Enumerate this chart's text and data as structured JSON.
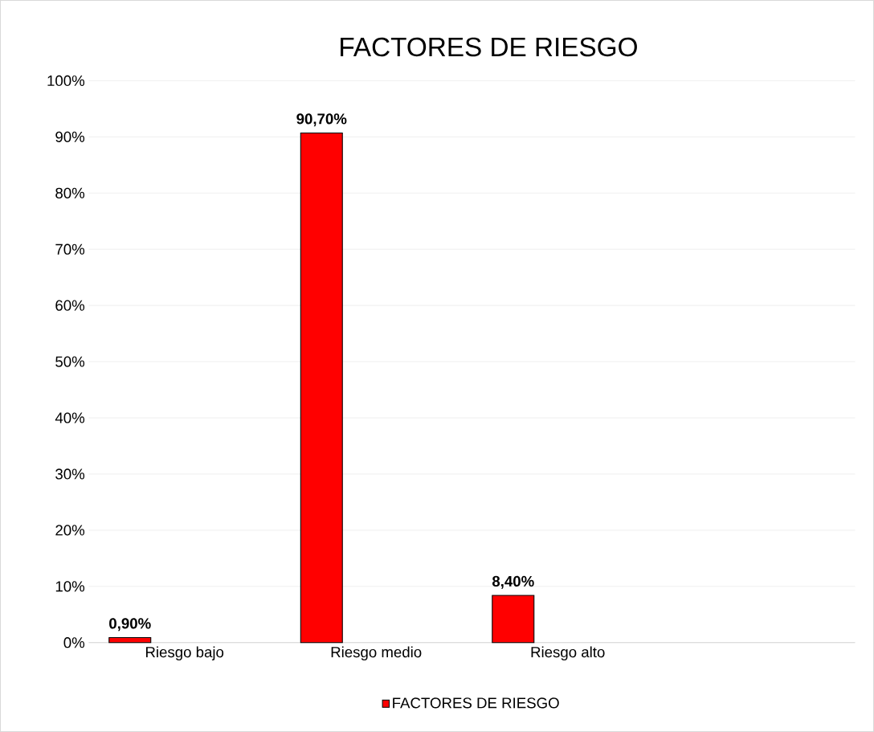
{
  "chart_data": {
    "type": "bar",
    "title": "FACTORES DE RIESGO",
    "categories": [
      "Riesgo bajo",
      "Riesgo medio",
      "Riesgo alto",
      null
    ],
    "series": [
      {
        "name": "FACTORES DE RIESGO",
        "color": "#ff0000",
        "values": [
          0.9,
          90.7,
          8.4,
          null
        ],
        "value_labels": [
          "0,90%",
          "90,70%",
          "8,40%",
          null
        ]
      }
    ],
    "ylim": [
      0,
      100
    ],
    "yticks": [
      {
        "value": 0,
        "label": "0%"
      },
      {
        "value": 10,
        "label": "10%"
      },
      {
        "value": 20,
        "label": "20%"
      },
      {
        "value": 30,
        "label": "30%"
      },
      {
        "value": 40,
        "label": "40%"
      },
      {
        "value": 50,
        "label": "50%"
      },
      {
        "value": 60,
        "label": "60%"
      },
      {
        "value": 70,
        "label": "70%"
      },
      {
        "value": 80,
        "label": "80%"
      },
      {
        "value": 90,
        "label": "90%"
      },
      {
        "value": 100,
        "label": "100%"
      }
    ],
    "grid": "y",
    "legend": "bottom"
  }
}
